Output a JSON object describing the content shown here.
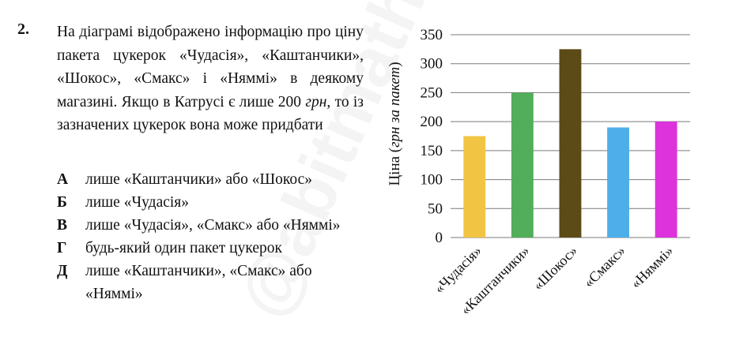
{
  "question": {
    "number": "2.",
    "text_before": "На діаграмі відображено інформацію про ціну пакета цукерок «Чудасія», «Каштанчики», «Шокос», «Смакс» і «Няммі» в деякому магазині. Якщо в Катрусі є лише 200 ",
    "text_unit": "грн",
    "text_after": ", то із зазначених цукерок вона може придбати"
  },
  "options": [
    {
      "letter": "А",
      "text": "лише «Каштанчики» або «Шокос»"
    },
    {
      "letter": "Б",
      "text": "лише «Чудасія»"
    },
    {
      "letter": "В",
      "text": "лише «Чудасія», «Смакс» або «Няммі»"
    },
    {
      "letter": "Г",
      "text": "будь-який один пакет цукерок"
    },
    {
      "letter": "Д",
      "text": "лише «Каштанчики», «Смакс» або «Няммі»"
    }
  ],
  "watermark": "@abitmath",
  "chart_data": {
    "type": "bar",
    "categories": [
      "«Чудасія»",
      "«Каштанчики»",
      "«Шокос»",
      "«Смакс»",
      "«Няммі»"
    ],
    "values": [
      175,
      250,
      325,
      190,
      200
    ],
    "colors": [
      "#f2c443",
      "#52ae5b",
      "#5c4a17",
      "#4eaee9",
      "#dd33dd"
    ],
    "ylabel_prefix": "Ціна (",
    "ylabel_unit": "грн за пакет",
    "ylabel_suffix": ")",
    "ylim": [
      0,
      350
    ],
    "yticks": [
      0,
      50,
      100,
      150,
      200,
      250,
      300,
      350
    ],
    "grid": true
  }
}
